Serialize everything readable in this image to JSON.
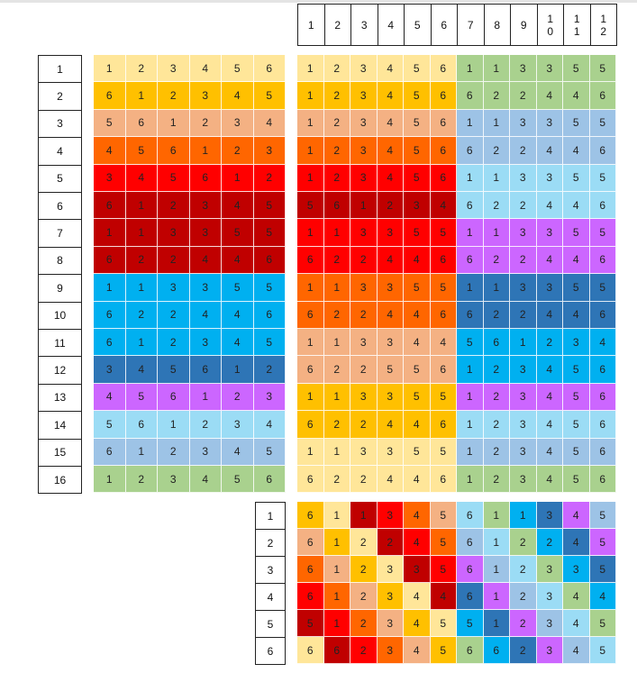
{
  "palette": {
    "A": "#ffe699",
    "B": "#ffc000",
    "C": "#f4b183",
    "D": "#ff6600",
    "E": "#ff0000",
    "F": "#c00000",
    "G": "#00b0f0",
    "H": "#2e75b6",
    "I": "#cc66ff",
    "J": "#9bdcf5",
    "K": "#9dc3e6",
    "L": "#a9d18e"
  },
  "column_headers": [
    "1",
    "2",
    "3",
    "4",
    "5",
    "6",
    "7",
    "8",
    "9",
    "10",
    "11",
    "12"
  ],
  "row_labels": [
    "1",
    "2",
    "3",
    "4",
    "5",
    "6",
    "7",
    "8",
    "9",
    "10",
    "11",
    "12",
    "13",
    "14",
    "15",
    "16"
  ],
  "bottom_row_labels": [
    "1",
    "2",
    "3",
    "4",
    "5",
    "6"
  ],
  "left_grid": {
    "values": [
      [
        "1",
        "2",
        "3",
        "4",
        "5",
        "6"
      ],
      [
        "6",
        "1",
        "2",
        "3",
        "4",
        "5"
      ],
      [
        "5",
        "6",
        "1",
        "2",
        "3",
        "4"
      ],
      [
        "4",
        "5",
        "6",
        "1",
        "2",
        "3"
      ],
      [
        "3",
        "4",
        "5",
        "6",
        "1",
        "2"
      ],
      [
        "6",
        "1",
        "2",
        "3",
        "4",
        "5"
      ],
      [
        "1",
        "1",
        "3",
        "3",
        "5",
        "5"
      ],
      [
        "6",
        "2",
        "2",
        "4",
        "4",
        "6"
      ],
      [
        "1",
        "1",
        "3",
        "3",
        "5",
        "5"
      ],
      [
        "6",
        "2",
        "2",
        "4",
        "4",
        "6"
      ],
      [
        "6",
        "1",
        "2",
        "3",
        "4",
        "5"
      ],
      [
        "3",
        "4",
        "5",
        "6",
        "1",
        "2"
      ],
      [
        "4",
        "5",
        "6",
        "1",
        "2",
        "3"
      ],
      [
        "5",
        "6",
        "1",
        "2",
        "3",
        "4"
      ],
      [
        "6",
        "1",
        "2",
        "3",
        "4",
        "5"
      ],
      [
        "1",
        "2",
        "3",
        "4",
        "5",
        "6"
      ]
    ],
    "colors": [
      "A",
      "B",
      "C",
      "D",
      "E",
      "F",
      "F",
      "F",
      "G",
      "G",
      "G",
      "H",
      "I",
      "J",
      "K",
      "L"
    ]
  },
  "right_grid": {
    "values": [
      [
        "1",
        "2",
        "3",
        "4",
        "5",
        "6",
        "1",
        "1",
        "3",
        "3",
        "5",
        "5"
      ],
      [
        "1",
        "2",
        "3",
        "4",
        "5",
        "6",
        "6",
        "2",
        "2",
        "4",
        "4",
        "6"
      ],
      [
        "1",
        "2",
        "3",
        "4",
        "5",
        "6",
        "1",
        "1",
        "3",
        "3",
        "5",
        "5"
      ],
      [
        "1",
        "2",
        "3",
        "4",
        "5",
        "6",
        "6",
        "2",
        "2",
        "4",
        "4",
        "6"
      ],
      [
        "1",
        "2",
        "3",
        "4",
        "5",
        "6",
        "1",
        "1",
        "3",
        "3",
        "5",
        "5"
      ],
      [
        "5",
        "6",
        "1",
        "2",
        "3",
        "4",
        "6",
        "2",
        "2",
        "4",
        "4",
        "6"
      ],
      [
        "1",
        "1",
        "3",
        "3",
        "5",
        "5",
        "1",
        "1",
        "3",
        "3",
        "5",
        "5"
      ],
      [
        "6",
        "2",
        "2",
        "4",
        "4",
        "6",
        "6",
        "2",
        "2",
        "4",
        "4",
        "6"
      ],
      [
        "1",
        "1",
        "3",
        "3",
        "5",
        "5",
        "1",
        "1",
        "3",
        "3",
        "5",
        "5"
      ],
      [
        "6",
        "2",
        "2",
        "4",
        "4",
        "6",
        "6",
        "2",
        "2",
        "4",
        "4",
        "6"
      ],
      [
        "1",
        "1",
        "3",
        "3",
        "4",
        "4",
        "5",
        "6",
        "1",
        "2",
        "3",
        "4"
      ],
      [
        "6",
        "2",
        "2",
        "5",
        "5",
        "6",
        "1",
        "2",
        "3",
        "4",
        "5",
        "6"
      ],
      [
        "1",
        "1",
        "3",
        "3",
        "5",
        "5",
        "1",
        "2",
        "3",
        "4",
        "5",
        "6"
      ],
      [
        "6",
        "2",
        "2",
        "4",
        "4",
        "6",
        "1",
        "2",
        "3",
        "4",
        "5",
        "6"
      ],
      [
        "1",
        "1",
        "3",
        "3",
        "5",
        "5",
        "1",
        "2",
        "3",
        "4",
        "5",
        "6"
      ],
      [
        "6",
        "2",
        "2",
        "4",
        "4",
        "6",
        "1",
        "2",
        "3",
        "4",
        "5",
        "6"
      ]
    ],
    "colors": [
      [
        "A",
        "A",
        "A",
        "A",
        "A",
        "A",
        "L",
        "L",
        "L",
        "L",
        "L",
        "L"
      ],
      [
        "B",
        "B",
        "B",
        "B",
        "B",
        "B",
        "L",
        "L",
        "L",
        "L",
        "L",
        "L"
      ],
      [
        "C",
        "C",
        "C",
        "C",
        "C",
        "C",
        "K",
        "K",
        "K",
        "K",
        "K",
        "K"
      ],
      [
        "D",
        "D",
        "D",
        "D",
        "D",
        "D",
        "K",
        "K",
        "K",
        "K",
        "K",
        "K"
      ],
      [
        "E",
        "E",
        "E",
        "E",
        "E",
        "E",
        "J",
        "J",
        "J",
        "J",
        "J",
        "J"
      ],
      [
        "F",
        "F",
        "F",
        "F",
        "F",
        "F",
        "J",
        "J",
        "J",
        "J",
        "J",
        "J"
      ],
      [
        "E",
        "E",
        "E",
        "E",
        "E",
        "E",
        "I",
        "I",
        "I",
        "I",
        "I",
        "I"
      ],
      [
        "E",
        "E",
        "E",
        "E",
        "E",
        "E",
        "I",
        "I",
        "I",
        "I",
        "I",
        "I"
      ],
      [
        "D",
        "D",
        "D",
        "D",
        "D",
        "D",
        "H",
        "H",
        "H",
        "H",
        "H",
        "H"
      ],
      [
        "D",
        "D",
        "D",
        "D",
        "D",
        "D",
        "H",
        "H",
        "H",
        "H",
        "H",
        "H"
      ],
      [
        "C",
        "C",
        "C",
        "C",
        "C",
        "C",
        "G",
        "G",
        "G",
        "G",
        "G",
        "G"
      ],
      [
        "C",
        "C",
        "C",
        "C",
        "C",
        "C",
        "G",
        "G",
        "G",
        "G",
        "G",
        "G"
      ],
      [
        "B",
        "B",
        "B",
        "B",
        "B",
        "B",
        "I",
        "I",
        "I",
        "I",
        "I",
        "I"
      ],
      [
        "B",
        "B",
        "B",
        "B",
        "B",
        "B",
        "J",
        "J",
        "J",
        "J",
        "J",
        "J"
      ],
      [
        "A",
        "A",
        "A",
        "A",
        "A",
        "A",
        "K",
        "K",
        "K",
        "K",
        "K",
        "K"
      ],
      [
        "A",
        "A",
        "A",
        "A",
        "A",
        "A",
        "L",
        "L",
        "L",
        "L",
        "L",
        "L"
      ]
    ]
  },
  "bottom_grid": {
    "values": [
      [
        "6",
        "1",
        "1",
        "3",
        "4",
        "5",
        "6",
        "1",
        "1",
        "3",
        "4",
        "5"
      ],
      [
        "6",
        "1",
        "2",
        "2",
        "4",
        "5",
        "6",
        "1",
        "2",
        "2",
        "4",
        "5"
      ],
      [
        "6",
        "1",
        "2",
        "3",
        "3",
        "5",
        "6",
        "1",
        "2",
        "3",
        "3",
        "5"
      ],
      [
        "6",
        "1",
        "2",
        "3",
        "4",
        "4",
        "6",
        "1",
        "2",
        "3",
        "4",
        "4"
      ],
      [
        "5",
        "1",
        "2",
        "3",
        "4",
        "5",
        "5",
        "1",
        "2",
        "3",
        "4",
        "5"
      ],
      [
        "6",
        "6",
        "2",
        "3",
        "4",
        "5",
        "6",
        "6",
        "2",
        "3",
        "4",
        "5"
      ]
    ],
    "colors": [
      [
        "B",
        "A",
        "F",
        "E",
        "D",
        "C",
        "J",
        "L",
        "G",
        "H",
        "I",
        "K"
      ],
      [
        "C",
        "B",
        "A",
        "F",
        "E",
        "D",
        "K",
        "J",
        "L",
        "G",
        "H",
        "I"
      ],
      [
        "D",
        "C",
        "B",
        "A",
        "F",
        "E",
        "I",
        "K",
        "J",
        "L",
        "G",
        "H"
      ],
      [
        "E",
        "D",
        "C",
        "B",
        "A",
        "F",
        "H",
        "I",
        "K",
        "J",
        "L",
        "G"
      ],
      [
        "F",
        "E",
        "D",
        "C",
        "B",
        "A",
        "G",
        "H",
        "I",
        "K",
        "J",
        "L"
      ],
      [
        "A",
        "F",
        "E",
        "D",
        "C",
        "B",
        "L",
        "G",
        "H",
        "I",
        "K",
        "J"
      ]
    ]
  }
}
